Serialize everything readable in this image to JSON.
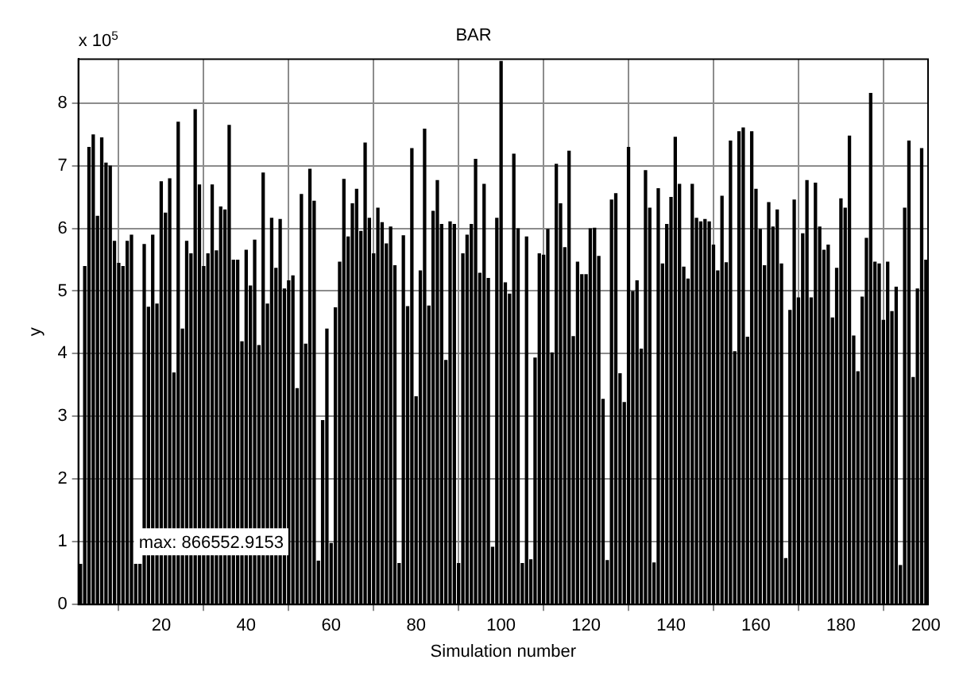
{
  "chart_data": {
    "type": "bar",
    "title": "BAR",
    "xlabel": "Simulation number",
    "ylabel": "y",
    "x": [
      1,
      2,
      3,
      4,
      5,
      6,
      7,
      8,
      9,
      10,
      11,
      12,
      13,
      14,
      15,
      16,
      17,
      18,
      19,
      20,
      21,
      22,
      23,
      24,
      25,
      26,
      27,
      28,
      29,
      30,
      31,
      32,
      33,
      34,
      35,
      36,
      37,
      38,
      39,
      40,
      41,
      42,
      43,
      44,
      45,
      46,
      47,
      48,
      49,
      50,
      51,
      52,
      53,
      54,
      55,
      56,
      57,
      58,
      59,
      60,
      61,
      62,
      63,
      64,
      65,
      66,
      67,
      68,
      69,
      70,
      71,
      72,
      73,
      74,
      75,
      76,
      77,
      78,
      79,
      80,
      81,
      82,
      83,
      84,
      85,
      86,
      87,
      88,
      89,
      90,
      91,
      92,
      93,
      94,
      95,
      96,
      97,
      98,
      99,
      100,
      101,
      102,
      103,
      104,
      105,
      106,
      107,
      108,
      109,
      110,
      111,
      112,
      113,
      114,
      115,
      116,
      117,
      118,
      119,
      120,
      121,
      122,
      123,
      124,
      125,
      126,
      127,
      128,
      129,
      130,
      131,
      132,
      133,
      134,
      135,
      136,
      137,
      138,
      139,
      140,
      141,
      142,
      143,
      144,
      145,
      146,
      147,
      148,
      149,
      150,
      151,
      152,
      153,
      154,
      155,
      156,
      157,
      158,
      159,
      160,
      161,
      162,
      163,
      164,
      165,
      166,
      167,
      168,
      169,
      170,
      171,
      172,
      173,
      174,
      175,
      176,
      177,
      178,
      179,
      180,
      181,
      182,
      183,
      184,
      185,
      186,
      187,
      188,
      189,
      190,
      191,
      192,
      193,
      194,
      195,
      196,
      197,
      198,
      199,
      200
    ],
    "values": [
      0.65,
      5.4,
      7.3,
      7.5,
      6.2,
      7.45,
      7.05,
      7.0,
      5.8,
      5.45,
      5.4,
      5.8,
      5.9,
      0.65,
      0.65,
      5.75,
      4.75,
      5.9,
      4.8,
      6.75,
      6.25,
      6.8,
      3.7,
      7.7,
      4.4,
      5.8,
      5.6,
      7.9,
      6.7,
      5.4,
      5.6,
      6.7,
      5.65,
      6.35,
      6.3,
      7.65,
      5.5,
      5.5,
      4.2,
      5.66,
      5.09,
      5.82,
      4.14,
      6.89,
      4.8,
      6.17,
      5.37,
      6.15,
      5.04,
      5.17,
      5.25,
      3.45,
      6.55,
      4.16,
      6.95,
      6.44,
      0.7,
      2.94,
      4.4,
      0.98,
      4.74,
      5.47,
      6.79,
      5.87,
      6.4,
      6.63,
      5.96,
      7.37,
      6.17,
      5.6,
      6.33,
      6.1,
      5.76,
      6.03,
      5.41,
      0.66,
      5.89,
      4.76,
      7.28,
      3.32,
      5.33,
      7.59,
      4.77,
      6.28,
      6.77,
      6.07,
      3.9,
      6.11,
      6.07,
      0.66,
      5.6,
      5.9,
      6.07,
      7.11,
      5.29,
      6.71,
      5.21,
      0.92,
      6.17,
      8.67,
      5.14,
      4.96,
      7.19,
      6.0,
      0.66,
      5.87,
      0.72,
      3.94,
      5.6,
      5.58,
      5.99,
      4.02,
      7.03,
      6.4,
      5.7,
      7.24,
      4.28,
      5.47,
      5.27,
      5.27,
      6.0,
      6.01,
      5.56,
      3.28,
      0.71,
      6.46,
      6.56,
      3.69,
      3.23,
      7.3,
      5.0,
      5.17,
      4.08,
      6.93,
      6.33,
      0.67,
      6.64,
      5.44,
      6.07,
      6.5,
      7.46,
      6.71,
      5.39,
      5.2,
      6.71,
      6.17,
      6.11,
      6.15,
      6.11,
      5.74,
      5.33,
      6.52,
      5.46,
      7.4,
      4.04,
      7.55,
      7.61,
      4.27,
      7.55,
      6.63,
      5.99,
      5.41,
      6.42,
      6.03,
      6.3,
      5.44,
      0.74,
      4.7,
      6.46,
      4.9,
      5.92,
      6.77,
      4.9,
      6.73,
      6.03,
      5.66,
      5.74,
      4.58,
      5.37,
      6.48,
      6.33,
      7.48,
      4.29,
      3.72,
      4.91,
      5.85,
      8.16,
      5.47,
      5.44,
      4.54,
      5.47,
      4.68,
      5.07,
      0.63,
      6.33,
      7.4,
      3.63,
      5.04,
      7.28,
      5.5
    ],
    "color": "#000000",
    "xlim": [
      0.5,
      200.5
    ],
    "xticks": [
      20,
      40,
      60,
      80,
      100,
      120,
      140,
      160,
      180,
      200
    ],
    "ylim": [
      0,
      8.7
    ],
    "yticks": [
      0,
      1,
      2,
      3,
      4,
      5,
      6,
      7,
      8
    ],
    "grid": true,
    "legend": false,
    "annotations": [
      "x 10$^{5}$",
      "max: 866552.9153"
    ]
  }
}
